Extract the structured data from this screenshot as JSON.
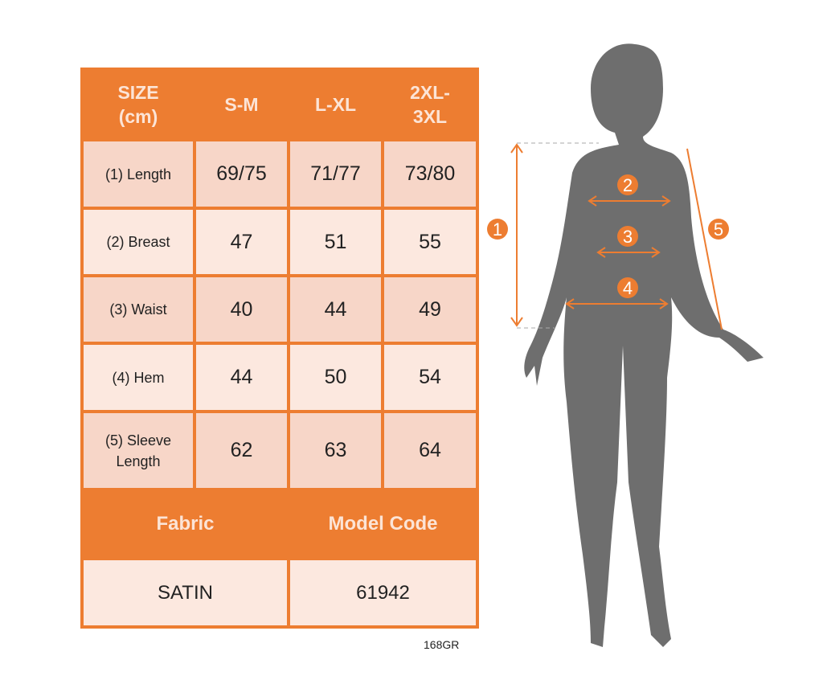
{
  "table": {
    "header": [
      "SIZE (cm)",
      "S-M",
      "L-XL",
      "2XL-3XL"
    ],
    "header_lines": {
      "size": [
        "SIZE",
        "(cm)"
      ],
      "xxl": [
        "2XL-",
        "3XL"
      ]
    },
    "rows": [
      {
        "label": "(1) Length",
        "values": [
          "69/75",
          "71/77",
          "73/80"
        ]
      },
      {
        "label": "(2) Breast",
        "values": [
          "47",
          "51",
          "55"
        ]
      },
      {
        "label": "(3) Waist",
        "values": [
          "40",
          "44",
          "49"
        ]
      },
      {
        "label": "(4) Hem",
        "values": [
          "44",
          "50",
          "54"
        ]
      },
      {
        "label_lines": [
          "(5) Sleeve",
          "Length"
        ],
        "values": [
          "62",
          "63",
          "64"
        ]
      }
    ],
    "fabric_label": "Fabric",
    "model_code_label": "Model Code",
    "fabric": "SATIN",
    "model_code": "61942"
  },
  "code": "168GR",
  "figure": {
    "markers": [
      "1",
      "2",
      "3",
      "4",
      "5"
    ]
  },
  "colors": {
    "accent": "#ED7D31",
    "silhouette": "#6E6E6E",
    "cell_dark": "#F7D6C8",
    "cell_light": "#FCE8DF"
  }
}
